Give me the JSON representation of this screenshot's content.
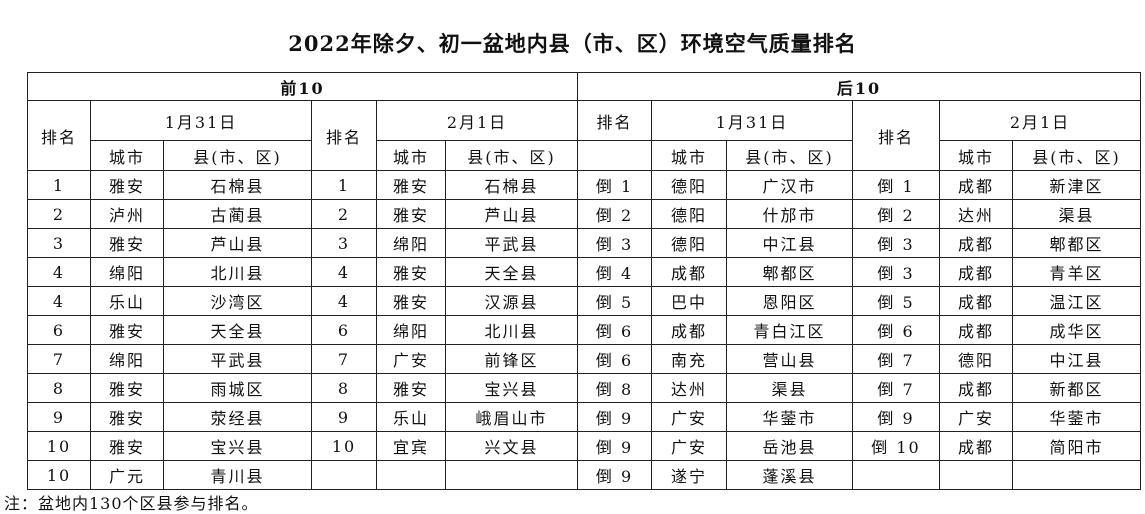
{
  "title": "2022年除夕、初一盆地内县（市、区）环境空气质量排名",
  "headers": {
    "top10": "前10",
    "bottom10": "后10",
    "rank": "排名",
    "date1": "1月31日",
    "date2": "2月1日",
    "city": "城市",
    "county": "县(市、区)"
  },
  "top10_jan31": [
    [
      "1",
      "雅安",
      "石棉县"
    ],
    [
      "2",
      "泸州",
      "古蔺县"
    ],
    [
      "3",
      "雅安",
      "芦山县"
    ],
    [
      "4",
      "绵阳",
      "北川县"
    ],
    [
      "4",
      "乐山",
      "沙湾区"
    ],
    [
      "6",
      "雅安",
      "天全县"
    ],
    [
      "7",
      "绵阳",
      "平武县"
    ],
    [
      "8",
      "雅安",
      "雨城区"
    ],
    [
      "9",
      "雅安",
      "荥经县"
    ],
    [
      "10",
      "雅安",
      "宝兴县"
    ],
    [
      "10",
      "广元",
      "青川县"
    ]
  ],
  "top10_feb1": [
    [
      "1",
      "雅安",
      "石棉县"
    ],
    [
      "2",
      "雅安",
      "芦山县"
    ],
    [
      "3",
      "绵阳",
      "平武县"
    ],
    [
      "4",
      "雅安",
      "天全县"
    ],
    [
      "4",
      "雅安",
      "汉源县"
    ],
    [
      "6",
      "绵阳",
      "北川县"
    ],
    [
      "7",
      "广安",
      "前锋区"
    ],
    [
      "8",
      "雅安",
      "宝兴县"
    ],
    [
      "9",
      "乐山",
      "峨眉山市"
    ],
    [
      "10",
      "宜宾",
      "兴文县"
    ],
    [
      "",
      "",
      ""
    ]
  ],
  "bottom10_jan31": [
    [
      "倒 1",
      "德阳",
      "广汉市"
    ],
    [
      "倒 2",
      "德阳",
      "什邡市"
    ],
    [
      "倒 3",
      "德阳",
      "中江县"
    ],
    [
      "倒 4",
      "成都",
      "郫都区"
    ],
    [
      "倒 5",
      "巴中",
      "恩阳区"
    ],
    [
      "倒 6",
      "成都",
      "青白江区"
    ],
    [
      "倒 6",
      "南充",
      "营山县"
    ],
    [
      "倒 8",
      "达州",
      "渠县"
    ],
    [
      "倒 9",
      "广安",
      "华蓥市"
    ],
    [
      "倒 9",
      "广安",
      "岳池县"
    ],
    [
      "倒 9",
      "遂宁",
      "蓬溪县"
    ]
  ],
  "bottom10_feb1": [
    [
      "倒 1",
      "成都",
      "新津区"
    ],
    [
      "倒 2",
      "达州",
      "渠县"
    ],
    [
      "倒 3",
      "成都",
      "郫都区"
    ],
    [
      "倒 3",
      "成都",
      "青羊区"
    ],
    [
      "倒 5",
      "成都",
      "温江区"
    ],
    [
      "倒 6",
      "成都",
      "成华区"
    ],
    [
      "倒 7",
      "德阳",
      "中江县"
    ],
    [
      "倒 7",
      "成都",
      "新都区"
    ],
    [
      "倒 9",
      "广安",
      "华蓥市"
    ],
    [
      "倒 10",
      "成都",
      "简阳市"
    ],
    [
      "",
      "",
      ""
    ]
  ],
  "note": "注：盆地内130个区县参与排名。"
}
